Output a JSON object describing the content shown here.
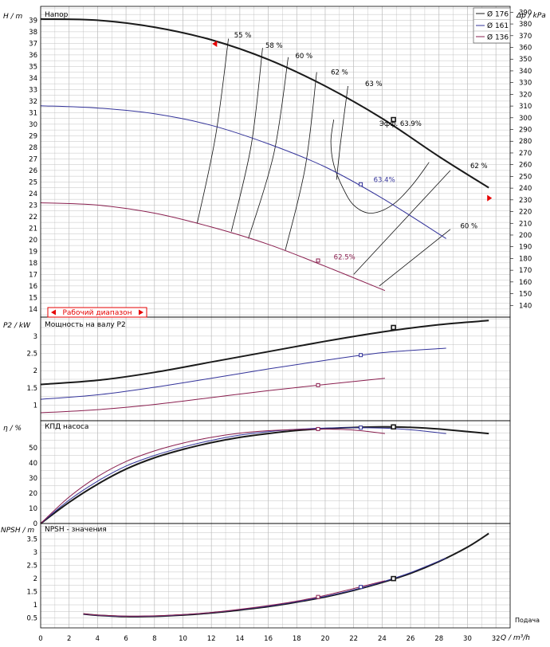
{
  "colors": {
    "d176": "#1a1a1a",
    "d161": "#33339a",
    "d136": "#8a1f4f",
    "grid": "#bbbbbb",
    "working_range": "#e60000"
  },
  "legend": [
    {
      "key": "d176",
      "label": "Ø 176"
    },
    {
      "key": "d161",
      "label": "Ø 161"
    },
    {
      "key": "d136",
      "label": "Ø 136"
    }
  ],
  "labels": {
    "head_panel_title": "Напор",
    "head_axis": "H / m",
    "dp_axis": "Δp / kPa",
    "working_range": "Рабочий диапазон",
    "power_panel_title": "Мощность на валу P2",
    "power_axis": "P2 / kW",
    "eff_panel_title": "КПД насоса",
    "eff_axis": "η / %",
    "npsh_panel_title": "NPSH - значения",
    "npsh_axis": "NPSH / m",
    "x_axis": "Q / m³/h",
    "flow_caption": "Подача",
    "eff_best": "Эфф.  63.9%"
  },
  "chart_data": [
    {
      "type": "line",
      "title": "Напор",
      "xlabel": "Q / m³/h",
      "ylabel": "H / m",
      "y2label": "Δp / kPa",
      "xlim": [
        0,
        33
      ],
      "ylim": [
        13.3,
        40.2
      ],
      "y2lim": [
        130,
        395
      ],
      "x_ticks": [
        0,
        2,
        4,
        6,
        8,
        10,
        12,
        14,
        16,
        18,
        20,
        22,
        24,
        26,
        28,
        30,
        32
      ],
      "y_ticks": [
        14,
        15,
        16,
        17,
        18,
        19,
        20,
        21,
        22,
        23,
        24,
        25,
        26,
        27,
        28,
        29,
        30,
        31,
        32,
        33,
        34,
        35,
        36,
        37,
        38,
        39
      ],
      "y2_ticks": [
        140,
        150,
        160,
        170,
        180,
        190,
        200,
        210,
        220,
        230,
        240,
        250,
        260,
        270,
        280,
        290,
        300,
        310,
        320,
        330,
        340,
        350,
        360,
        370,
        380,
        390
      ],
      "grid": true,
      "legend_position": "top-right",
      "series": [
        {
          "name": "Ø 176",
          "color_key": "d176",
          "x": [
            0,
            4,
            8,
            12,
            16,
            20,
            24,
            28,
            31.5
          ],
          "y": [
            39.1,
            39.0,
            38.4,
            37.3,
            35.6,
            33.3,
            30.5,
            27.2,
            24.5
          ]
        },
        {
          "name": "Ø 161",
          "color_key": "d161",
          "x": [
            0,
            4,
            8,
            12,
            16,
            20,
            24,
            28.5
          ],
          "y": [
            31.6,
            31.4,
            30.9,
            29.9,
            28.3,
            26.3,
            23.6,
            20.1
          ]
        },
        {
          "name": "Ø 136",
          "color_key": "d136",
          "x": [
            0,
            4,
            8,
            12,
            16,
            20,
            24.2
          ],
          "y": [
            23.2,
            23.0,
            22.3,
            21.1,
            19.6,
            17.7,
            15.6
          ]
        }
      ],
      "bep_markers": [
        {
          "series": "Ø 176",
          "x": 24.8,
          "y": 30.4
        },
        {
          "series": "Ø 161",
          "x": 22.5,
          "y": 24.8
        },
        {
          "series": "Ø 136",
          "x": 19.5,
          "y": 18.2
        }
      ],
      "efficiency_labels": [
        {
          "text": "55 %",
          "x": 13.6,
          "y": 37.5
        },
        {
          "text": "58 %",
          "x": 15.8,
          "y": 36.6
        },
        {
          "text": "60 %",
          "x": 17.9,
          "y": 35.7
        },
        {
          "text": "62 %",
          "x": 20.4,
          "y": 34.3
        },
        {
          "text": "63 %",
          "x": 22.8,
          "y": 33.3
        },
        {
          "text": "63.4%",
          "x": 23.4,
          "y": 25.0
        },
        {
          "text": "62.5%",
          "x": 20.6,
          "y": 18.3
        },
        {
          "text": "62 %",
          "x": 30.2,
          "y": 26.2
        },
        {
          "text": "60 %",
          "x": 29.5,
          "y": 21.0
        }
      ],
      "efficiency_isolines": [
        {
          "label": "55 %",
          "x": [
            11.0,
            12.3,
            13.2
          ],
          "y": [
            21.4,
            29.0,
            37.4
          ]
        },
        {
          "label": "58 %",
          "x": [
            13.4,
            14.8,
            15.6
          ],
          "y": [
            20.7,
            28.2,
            36.6
          ]
        },
        {
          "label": "60 %",
          "x": [
            14.6,
            16.4,
            17.4
          ],
          "y": [
            20.1,
            27.5,
            35.8
          ]
        },
        {
          "label": "62 %",
          "x": [
            17.2,
            18.6,
            19.4
          ],
          "y": [
            19.1,
            26.3,
            34.5
          ]
        },
        {
          "label": "63 %",
          "x": [
            20.8,
            21.1,
            21.6
          ],
          "y": [
            25.2,
            28.6,
            33.3
          ]
        },
        {
          "label": "63.4%",
          "x": [
            20.6,
            20.4,
            20.6,
            21.2,
            22.0,
            23.2,
            24.7,
            26.1,
            27.3
          ],
          "y": [
            30.4,
            28.5,
            26.5,
            24.6,
            23.0,
            22.3,
            23.0,
            24.7,
            26.7
          ]
        },
        {
          "label": "62 % (right)",
          "x": [
            22.0,
            28.8
          ],
          "y": [
            17.0,
            26.0
          ]
        },
        {
          "label": "60 % (right)",
          "x": [
            23.8,
            28.8
          ],
          "y": [
            16.0,
            20.9
          ]
        }
      ]
    },
    {
      "type": "line",
      "title": "Мощность на валу P2",
      "xlabel": "Q / m³/h",
      "ylabel": "P2 / kW",
      "xlim": [
        0,
        33
      ],
      "ylim": [
        0.55,
        3.55
      ],
      "y_ticks": [
        1,
        1.5,
        2,
        2.5,
        3
      ],
      "grid": true,
      "series": [
        {
          "name": "Ø 176",
          "color_key": "d176",
          "x": [
            0,
            4,
            8,
            12,
            16,
            20,
            24,
            28,
            31.5
          ],
          "y": [
            1.6,
            1.72,
            1.95,
            2.25,
            2.55,
            2.85,
            3.12,
            3.33,
            3.45
          ]
        },
        {
          "name": "Ø 161",
          "color_key": "d161",
          "x": [
            0,
            4,
            8,
            12,
            16,
            20,
            24,
            28.5
          ],
          "y": [
            1.17,
            1.3,
            1.52,
            1.78,
            2.05,
            2.3,
            2.52,
            2.65
          ]
        },
        {
          "name": "Ø 136",
          "color_key": "d136",
          "x": [
            0,
            4,
            8,
            12,
            16,
            20,
            24.2
          ],
          "y": [
            0.78,
            0.87,
            1.02,
            1.22,
            1.42,
            1.6,
            1.78
          ]
        }
      ],
      "bep_markers": [
        {
          "series": "Ø 176",
          "x": 24.8,
          "y": 3.25
        },
        {
          "series": "Ø 161",
          "x": 22.5,
          "y": 2.45
        },
        {
          "series": "Ø 136",
          "x": 19.5,
          "y": 1.58
        }
      ]
    },
    {
      "type": "line",
      "title": "КПД насоса",
      "xlabel": "Q / m³/h",
      "ylabel": "η / %",
      "xlim": [
        0,
        33
      ],
      "ylim": [
        0,
        68
      ],
      "y_ticks": [
        0,
        10,
        20,
        30,
        40,
        50
      ],
      "grid": true,
      "series": [
        {
          "name": "Ø 176",
          "color_key": "d176",
          "x": [
            0,
            2,
            4,
            6,
            8,
            10,
            12,
            14,
            16,
            18,
            20,
            22,
            24,
            26,
            28,
            31.5
          ],
          "y": [
            0,
            14,
            26,
            36,
            43.5,
            49,
            53.5,
            57,
            59.5,
            61.5,
            62.8,
            63.5,
            63.9,
            63.6,
            62.5,
            59.5
          ]
        },
        {
          "name": "Ø 161",
          "color_key": "d161",
          "x": [
            0,
            2,
            4,
            6,
            8,
            10,
            12,
            14,
            16,
            18,
            20,
            22,
            24,
            26,
            28.5
          ],
          "y": [
            0,
            15.5,
            28,
            38,
            45,
            50.5,
            55,
            58.5,
            60.8,
            62.3,
            63.1,
            63.4,
            63.1,
            62.0,
            59.5
          ]
        },
        {
          "name": "Ø 136",
          "color_key": "d136",
          "x": [
            0,
            2,
            4,
            6,
            8,
            10,
            12,
            14,
            16,
            18,
            20,
            22,
            24.2
          ],
          "y": [
            0,
            17.5,
            31,
            41,
            48,
            53.2,
            57,
            59.8,
            61.4,
            62.2,
            62.4,
            61.8,
            59.5
          ]
        }
      ],
      "bep_markers": [
        {
          "series": "Ø 176",
          "x": 24.8,
          "y": 63.9
        },
        {
          "series": "Ø 161",
          "x": 22.5,
          "y": 63.4
        },
        {
          "series": "Ø 136",
          "x": 19.5,
          "y": 62.5
        }
      ]
    },
    {
      "type": "line",
      "title": "NPSH - значения",
      "xlabel": "Q / m³/h",
      "ylabel": "NPSH / m",
      "xlim": [
        0,
        33
      ],
      "ylim": [
        0.12,
        4.1
      ],
      "y_ticks": [
        0.5,
        1,
        1.5,
        2,
        2.5,
        3,
        3.5
      ],
      "grid": true,
      "series": [
        {
          "name": "Ø 176",
          "color_key": "d176",
          "x": [
            3,
            4,
            6,
            8,
            10,
            12,
            14,
            16,
            18,
            20,
            22,
            24,
            26,
            28,
            30,
            31.5
          ],
          "y": [
            0.65,
            0.6,
            0.55,
            0.56,
            0.61,
            0.69,
            0.8,
            0.93,
            1.1,
            1.3,
            1.55,
            1.85,
            2.2,
            2.65,
            3.2,
            3.72
          ]
        },
        {
          "name": "Ø 161",
          "color_key": "d161",
          "x": [
            3,
            4,
            6,
            8,
            10,
            12,
            14,
            16,
            18,
            20,
            22,
            24,
            26,
            28.5
          ],
          "y": [
            0.65,
            0.6,
            0.56,
            0.57,
            0.62,
            0.7,
            0.82,
            0.95,
            1.12,
            1.32,
            1.57,
            1.87,
            2.23,
            2.78
          ]
        },
        {
          "name": "Ø 136",
          "color_key": "d136",
          "x": [
            3,
            4,
            6,
            8,
            10,
            12,
            14,
            16,
            18,
            20,
            22,
            24.2
          ],
          "y": [
            0.66,
            0.61,
            0.57,
            0.58,
            0.63,
            0.71,
            0.83,
            0.97,
            1.14,
            1.36,
            1.62,
            1.92
          ]
        }
      ],
      "bep_markers": [
        {
          "series": "Ø 176",
          "x": 24.8,
          "y": 2.0
        },
        {
          "series": "Ø 161",
          "x": 22.5,
          "y": 1.68
        },
        {
          "series": "Ø 136",
          "x": 19.5,
          "y": 1.3
        }
      ]
    }
  ]
}
